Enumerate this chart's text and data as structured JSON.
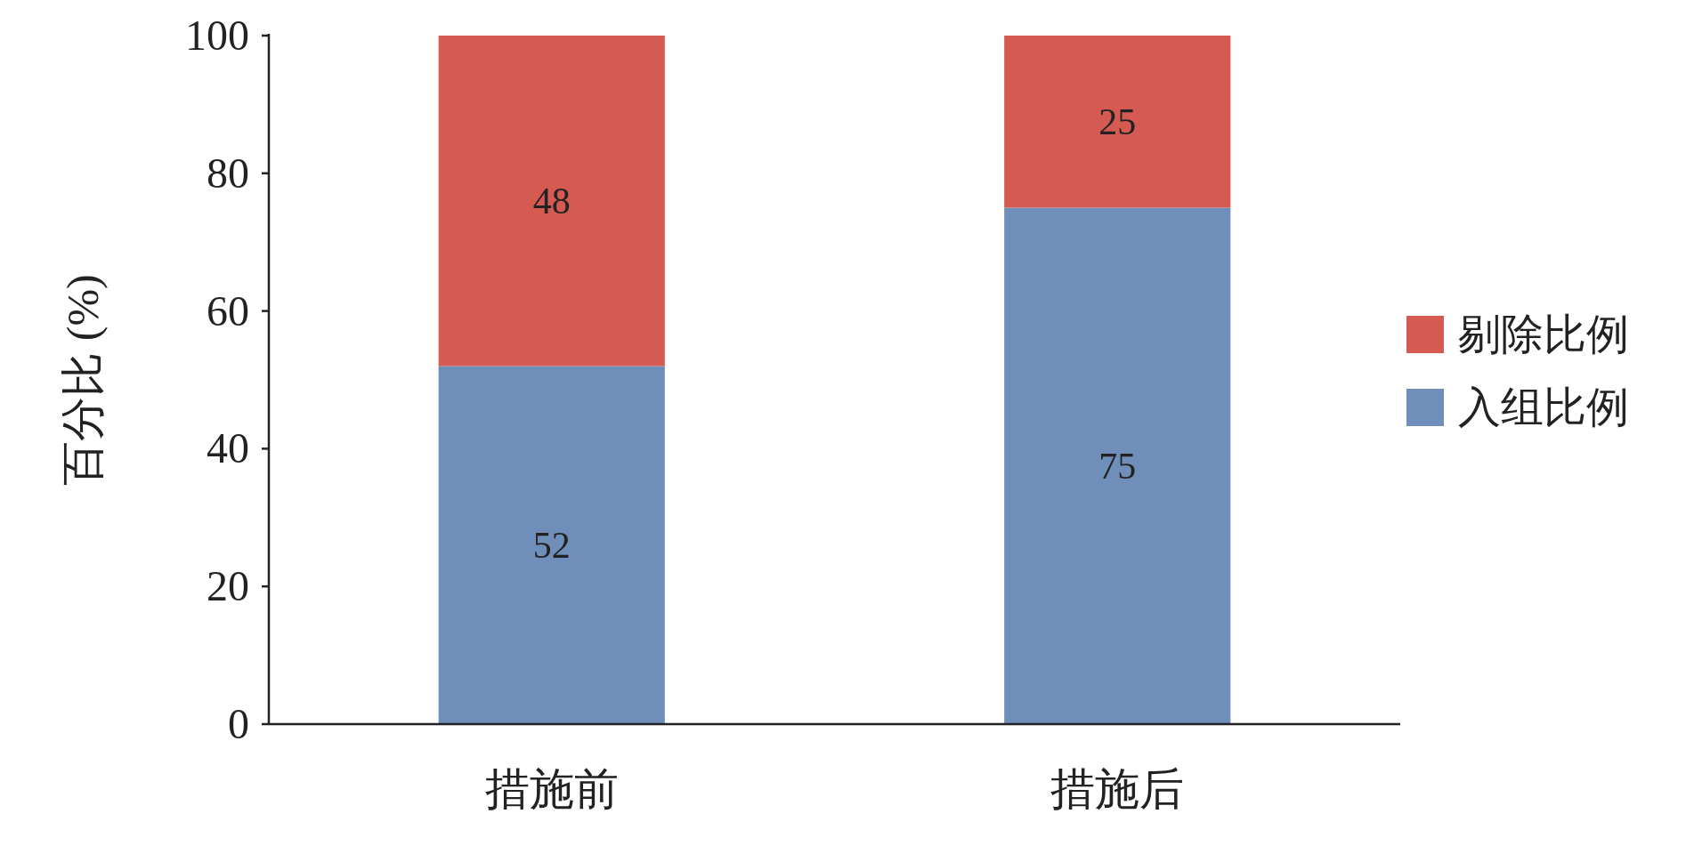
{
  "chart_data": {
    "type": "bar",
    "stacked": true,
    "categories": [
      "措施前",
      "措施后"
    ],
    "series": [
      {
        "name": "入组比例",
        "color": "#6f8fba",
        "values": [
          52,
          75
        ]
      },
      {
        "name": "剔除比例",
        "color": "#d45a52",
        "values": [
          48,
          25
        ]
      }
    ],
    "ylabel": "百分比 (%)",
    "ylim": [
      0,
      100
    ],
    "yticks": [
      0,
      20,
      40,
      60,
      80,
      100
    ],
    "legend": "right",
    "data_labels": true
  }
}
